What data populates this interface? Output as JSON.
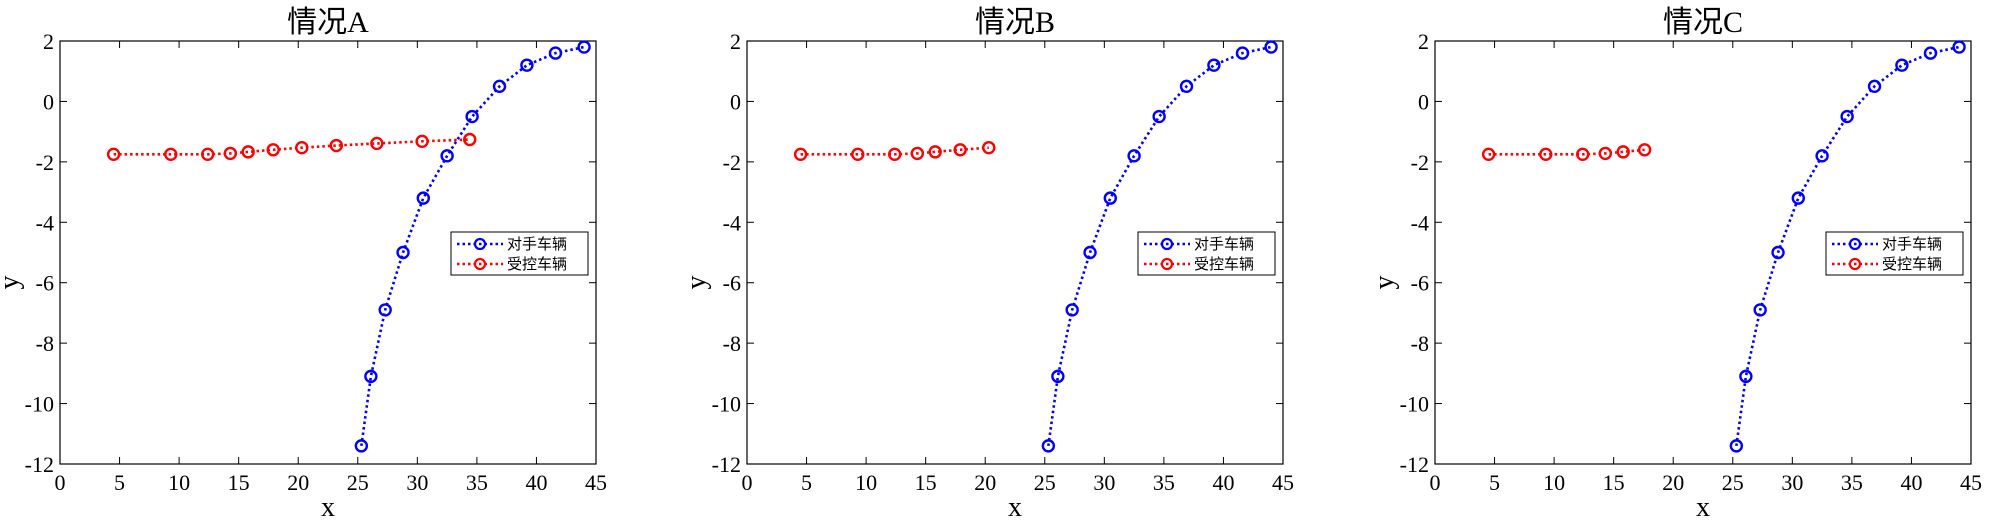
{
  "chart_data": [
    {
      "type": "line",
      "title": "情况A",
      "xlabel": "x",
      "ylabel": "y",
      "xlim": [
        0,
        45
      ],
      "ylim": [
        -12,
        2
      ],
      "xticks": [
        0,
        5,
        10,
        15,
        20,
        25,
        30,
        35,
        40,
        45
      ],
      "yticks": [
        2,
        0,
        -2,
        -4,
        -6,
        -8,
        -10,
        -12
      ],
      "grid": false,
      "legend_position": "center-right",
      "series": [
        {
          "name": "对手车辆",
          "color": "#0000ff",
          "marker": "circle",
          "line_style": "dotted",
          "x": [
            25.3,
            26.1,
            27.3,
            28.8,
            30.5,
            32.5,
            34.6,
            36.9,
            39.2,
            41.6,
            44.0
          ],
          "y": [
            -11.4,
            -9.1,
            -6.9,
            -5.0,
            -3.2,
            -1.8,
            -0.5,
            0.5,
            1.2,
            1.6,
            1.8
          ]
        },
        {
          "name": "受控车辆",
          "color": "#ff0000",
          "marker": "circle",
          "line_style": "dotted",
          "x": [
            4.5,
            9.3,
            12.4,
            14.3,
            15.8,
            17.9,
            20.3,
            23.2,
            26.6,
            30.4,
            34.4
          ],
          "y": [
            -1.75,
            -1.75,
            -1.75,
            -1.72,
            -1.67,
            -1.6,
            -1.53,
            -1.46,
            -1.39,
            -1.32,
            -1.26
          ]
        }
      ]
    },
    {
      "type": "line",
      "title": "情况B",
      "xlabel": "x",
      "ylabel": "y",
      "xlim": [
        0,
        45
      ],
      "ylim": [
        -12,
        2
      ],
      "xticks": [
        0,
        5,
        10,
        15,
        20,
        25,
        30,
        35,
        40,
        45
      ],
      "yticks": [
        2,
        0,
        -2,
        -4,
        -6,
        -8,
        -10,
        -12
      ],
      "grid": false,
      "legend_position": "center-right",
      "series": [
        {
          "name": "对手车辆",
          "color": "#0000ff",
          "marker": "circle",
          "line_style": "dotted",
          "x": [
            25.3,
            26.1,
            27.3,
            28.8,
            30.5,
            32.5,
            34.6,
            36.9,
            39.2,
            41.6,
            44.0
          ],
          "y": [
            -11.4,
            -9.1,
            -6.9,
            -5.0,
            -3.2,
            -1.8,
            -0.5,
            0.5,
            1.2,
            1.6,
            1.8
          ]
        },
        {
          "name": "受控车辆",
          "color": "#ff0000",
          "marker": "circle",
          "line_style": "dotted",
          "x": [
            4.5,
            9.3,
            12.4,
            14.3,
            15.8,
            17.9,
            20.3
          ],
          "y": [
            -1.75,
            -1.75,
            -1.75,
            -1.72,
            -1.67,
            -1.6,
            -1.53
          ]
        }
      ]
    },
    {
      "type": "line",
      "title": "情况C",
      "xlabel": "x",
      "ylabel": "y",
      "xlim": [
        0,
        45
      ],
      "ylim": [
        -12,
        2
      ],
      "xticks": [
        0,
        5,
        10,
        15,
        20,
        25,
        30,
        35,
        40,
        45
      ],
      "yticks": [
        2,
        0,
        -2,
        -4,
        -6,
        -8,
        -10,
        -12
      ],
      "grid": false,
      "legend_position": "center-right",
      "series": [
        {
          "name": "对手车辆",
          "color": "#0000ff",
          "marker": "circle",
          "line_style": "dotted",
          "x": [
            25.3,
            26.1,
            27.3,
            28.8,
            30.5,
            32.5,
            34.6,
            36.9,
            39.2,
            41.6,
            44.0
          ],
          "y": [
            -11.4,
            -9.1,
            -6.9,
            -5.0,
            -3.2,
            -1.8,
            -0.5,
            0.5,
            1.2,
            1.6,
            1.8
          ]
        },
        {
          "name": "受控车辆",
          "color": "#ff0000",
          "marker": "circle",
          "line_style": "dotted",
          "x": [
            4.5,
            9.3,
            12.4,
            14.3,
            15.8,
            17.6
          ],
          "y": [
            -1.75,
            -1.75,
            -1.75,
            -1.72,
            -1.67,
            -1.6
          ]
        }
      ]
    }
  ]
}
